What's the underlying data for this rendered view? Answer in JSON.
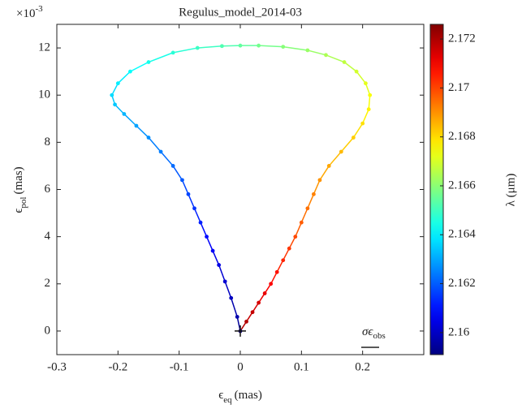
{
  "chart_data": {
    "type": "scatter",
    "title": "Regulus_model_2014-03",
    "xlabel": {
      "symbol": "ϵ",
      "sub": "eq",
      "unit": "(mas)"
    },
    "ylabel": {
      "symbol": "ϵ",
      "sub": "pol",
      "unit": "(mas)"
    },
    "y_exponent": {
      "base": "×10",
      "exp": "-3"
    },
    "colorbar_label": "λ (μm)",
    "annotation": {
      "symbol": "σϵ",
      "sub": "obs"
    },
    "xlim": [
      -0.3,
      0.3
    ],
    "xticks": [
      -0.3,
      -0.2,
      -0.1,
      0,
      0.1,
      0.2
    ],
    "ylim": [
      -1,
      13
    ],
    "yticks": [
      0,
      2,
      4,
      6,
      8,
      10,
      12
    ],
    "clim": [
      2.1591,
      2.1726
    ],
    "cticks": [
      2.16,
      2.162,
      2.164,
      2.166,
      2.168,
      2.17,
      2.172
    ],
    "colormap": "jet",
    "series": [
      {
        "x": [
          0,
          0.01,
          0.02,
          0.03,
          0.04,
          0.05,
          0.06,
          0.07,
          0.08,
          0.09,
          0.1,
          0.11,
          0.12,
          0.13,
          0.145,
          0.165,
          0.185,
          0.2,
          0.21,
          0.212,
          0.205,
          0.19,
          0.17,
          0.14,
          0.11,
          0.07,
          0.03,
          0,
          -0.03,
          -0.07,
          -0.11,
          -0.15,
          -0.18,
          -0.2,
          -0.21,
          -0.205,
          -0.19,
          -0.17,
          -0.15,
          -0.13,
          -0.11,
          -0.095,
          -0.085,
          -0.075,
          -0.065,
          -0.055,
          -0.045,
          -0.035,
          -0.025,
          -0.015,
          -0.005,
          0
        ],
        "y": [
          0,
          0.4,
          0.8,
          1.2,
          1.6,
          2.0,
          2.5,
          3.0,
          3.5,
          4.0,
          4.6,
          5.2,
          5.8,
          6.4,
          7.0,
          7.6,
          8.2,
          8.8,
          9.4,
          10.0,
          10.5,
          11.0,
          11.4,
          11.7,
          11.9,
          12.05,
          12.1,
          12.1,
          12.08,
          12.0,
          11.8,
          11.4,
          11.0,
          10.5,
          10.0,
          9.6,
          9.2,
          8.7,
          8.2,
          7.6,
          7.0,
          6.4,
          5.8,
          5.2,
          4.6,
          4.0,
          3.4,
          2.8,
          2.1,
          1.4,
          0.6,
          0
        ],
        "c": [
          2.1722,
          2.17195,
          2.1717,
          2.17145,
          2.1712,
          2.17095,
          2.1707,
          2.17045,
          2.1702,
          2.16995,
          2.1697,
          2.16945,
          2.1692,
          2.16895,
          2.1687,
          2.16845,
          2.1682,
          2.16795,
          2.1677,
          2.16745,
          2.1672,
          2.16695,
          2.1667,
          2.16645,
          2.1662,
          2.16595,
          2.1657,
          2.16545,
          2.1652,
          2.16495,
          2.1647,
          2.16445,
          2.1642,
          2.16395,
          2.1637,
          2.16345,
          2.1632,
          2.16295,
          2.1627,
          2.16245,
          2.1622,
          2.16195,
          2.1617,
          2.16145,
          2.1612,
          2.16095,
          2.1607,
          2.16045,
          2.1602,
          2.15995,
          2.1597,
          2.15945
        ]
      }
    ]
  }
}
